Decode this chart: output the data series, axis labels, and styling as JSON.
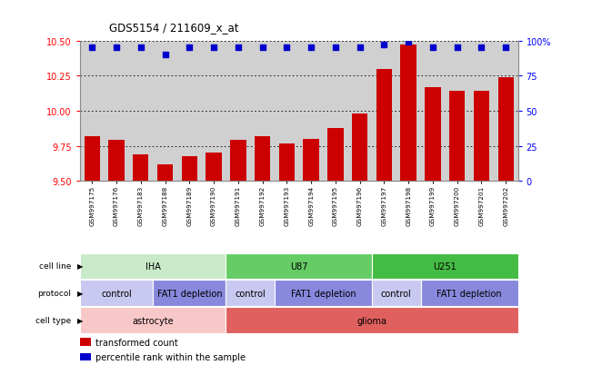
{
  "title": "GDS5154 / 211609_x_at",
  "samples": [
    "GSM997175",
    "GSM997176",
    "GSM997183",
    "GSM997188",
    "GSM997189",
    "GSM997190",
    "GSM997191",
    "GSM997192",
    "GSM997193",
    "GSM997194",
    "GSM997195",
    "GSM997196",
    "GSM997197",
    "GSM997198",
    "GSM997199",
    "GSM997200",
    "GSM997201",
    "GSM997202"
  ],
  "bar_values": [
    9.82,
    9.79,
    9.69,
    9.62,
    9.68,
    9.7,
    9.79,
    9.82,
    9.77,
    9.8,
    9.88,
    9.98,
    10.3,
    10.47,
    10.17,
    10.14,
    10.14,
    10.24
  ],
  "percentile_values": [
    95,
    95,
    95,
    90,
    95,
    95,
    95,
    95,
    95,
    95,
    95,
    95,
    97,
    99,
    95,
    95,
    95,
    95
  ],
  "ylim": [
    9.5,
    10.5
  ],
  "yticks": [
    9.5,
    9.75,
    10.0,
    10.25,
    10.5
  ],
  "right_yticks": [
    0,
    25,
    50,
    75,
    100
  ],
  "bar_color": "#cc0000",
  "dot_color": "#0000cc",
  "plot_bg": "#ffffff",
  "xaxis_bg": "#d0d0d0",
  "grid_color": "#000000",
  "cell_line_groups": [
    {
      "label": "IHA",
      "start": 0,
      "end": 6,
      "color": "#c8eac8"
    },
    {
      "label": "U87",
      "start": 6,
      "end": 12,
      "color": "#66cc66"
    },
    {
      "label": "U251",
      "start": 12,
      "end": 18,
      "color": "#44bb44"
    }
  ],
  "protocol_groups": [
    {
      "label": "control",
      "start": 0,
      "end": 3,
      "color": "#c8c8f0"
    },
    {
      "label": "FAT1 depletion",
      "start": 3,
      "end": 6,
      "color": "#8888dd"
    },
    {
      "label": "control",
      "start": 6,
      "end": 8,
      "color": "#c8c8f0"
    },
    {
      "label": "FAT1 depletion",
      "start": 8,
      "end": 12,
      "color": "#8888dd"
    },
    {
      "label": "control",
      "start": 12,
      "end": 14,
      "color": "#c8c8f0"
    },
    {
      "label": "FAT1 depletion",
      "start": 14,
      "end": 18,
      "color": "#8888dd"
    }
  ],
  "cell_type_groups": [
    {
      "label": "astrocyte",
      "start": 0,
      "end": 6,
      "color": "#f8c8c8"
    },
    {
      "label": "glioma",
      "start": 6,
      "end": 18,
      "color": "#e06060"
    }
  ],
  "row_labels": [
    "cell line",
    "protocol",
    "cell type"
  ],
  "legend_items": [
    {
      "color": "#cc0000",
      "label": "transformed count"
    },
    {
      "color": "#0000cc",
      "label": "percentile rank within the sample"
    }
  ]
}
